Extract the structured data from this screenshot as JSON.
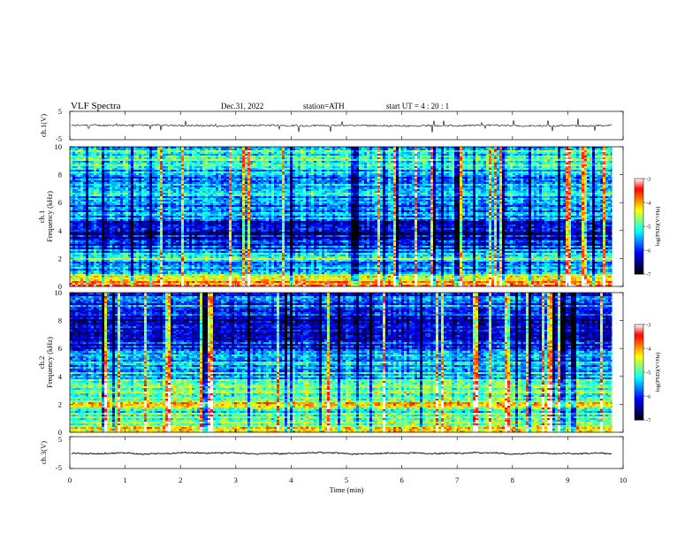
{
  "header": {
    "title": "VLF  Spectra",
    "date": "Dec.31, 2022",
    "station": "station=ATH",
    "start": "start  UT  =   4  : 20 : 1"
  },
  "colors": {
    "colormap": [
      "#000000",
      "#00007f",
      "#0000ff",
      "#007fff",
      "#00ffff",
      "#7fff7f",
      "#ffff00",
      "#ff7f00",
      "#ff0000",
      "#ffffff"
    ]
  },
  "chart_data": [
    {
      "type": "line",
      "panel": "ch1",
      "ylabel": "ch.1(V)",
      "ylim": [
        -5,
        5
      ],
      "yticks": [
        "5",
        "-5"
      ],
      "xlim": [
        0,
        10
      ],
      "mean": 0,
      "noise_amplitude": 0.6,
      "spike_amplitude": 2.5
    },
    {
      "type": "heatmap",
      "panel": "ch1-spectrogram",
      "ylabel_top": "ch.1",
      "ylabel": "Frequency  (kHz)",
      "ylim": [
        0,
        10
      ],
      "yticks": [
        "0",
        "2",
        "4",
        "6",
        "8",
        "10"
      ],
      "xlim": [
        0,
        10
      ],
      "data_end_min": 9.8,
      "colorbar": {
        "label": "log(PSD)(V²/Hz)",
        "range": [
          -7,
          -3
        ],
        "ticks": [
          "-3",
          "-4",
          "-5",
          "-6",
          "-7"
        ]
      },
      "band_profile_khz": [
        {
          "f": 0.0,
          "level": -3.5
        },
        {
          "f": 0.5,
          "level": -4.2
        },
        {
          "f": 1.0,
          "level": -5.2
        },
        {
          "f": 1.6,
          "level": -5.8
        },
        {
          "f": 2.0,
          "level": -4.6
        },
        {
          "f": 2.4,
          "level": -5.6
        },
        {
          "f": 3.0,
          "level": -6.0
        },
        {
          "f": 4.0,
          "level": -6.5
        },
        {
          "f": 5.0,
          "level": -5.6
        },
        {
          "f": 6.0,
          "level": -5.8
        },
        {
          "f": 7.0,
          "level": -5.2
        },
        {
          "f": 8.0,
          "level": -5.6
        },
        {
          "f": 9.0,
          "level": -5.0
        },
        {
          "f": 10.0,
          "level": -5.3
        }
      ]
    },
    {
      "type": "heatmap",
      "panel": "ch2-spectrogram",
      "ylabel_top": "ch.2",
      "ylabel": "Frequency  (kHz)",
      "ylim": [
        0,
        10
      ],
      "yticks": [
        "0",
        "2",
        "4",
        "6",
        "8",
        "10"
      ],
      "xlim": [
        0,
        10
      ],
      "data_end_min": 9.8,
      "colorbar": {
        "label": "log(PSD)(V²/Hz)",
        "range": [
          -7,
          -3
        ],
        "ticks": [
          "-3",
          "-4",
          "-5",
          "-6",
          "-7"
        ]
      },
      "band_profile_khz": [
        {
          "f": 0.0,
          "level": -3.8
        },
        {
          "f": 0.5,
          "level": -4.6
        },
        {
          "f": 1.0,
          "level": -5.0
        },
        {
          "f": 1.6,
          "level": -5.0
        },
        {
          "f": 2.0,
          "level": -4.2
        },
        {
          "f": 2.4,
          "level": -5.2
        },
        {
          "f": 3.0,
          "level": -4.8
        },
        {
          "f": 4.0,
          "level": -5.3
        },
        {
          "f": 5.0,
          "level": -5.4
        },
        {
          "f": 6.0,
          "level": -6.0
        },
        {
          "f": 7.0,
          "level": -6.2
        },
        {
          "f": 8.0,
          "level": -6.3
        },
        {
          "f": 9.0,
          "level": -5.8
        },
        {
          "f": 10.0,
          "level": -6.0
        }
      ]
    },
    {
      "type": "line",
      "panel": "ch3",
      "ylabel": "ch.3(V)",
      "ylim": [
        -5,
        5
      ],
      "yticks": [
        "5",
        "-5"
      ],
      "xlim": [
        0,
        10
      ],
      "mean": -0.3,
      "noise_amplitude": 0.35,
      "spike_amplitude": 0
    }
  ],
  "xaxis": {
    "label": "Time  (min)",
    "ticks": [
      "0",
      "1",
      "2",
      "3",
      "4",
      "5",
      "6",
      "7",
      "8",
      "9",
      "10"
    ]
  }
}
